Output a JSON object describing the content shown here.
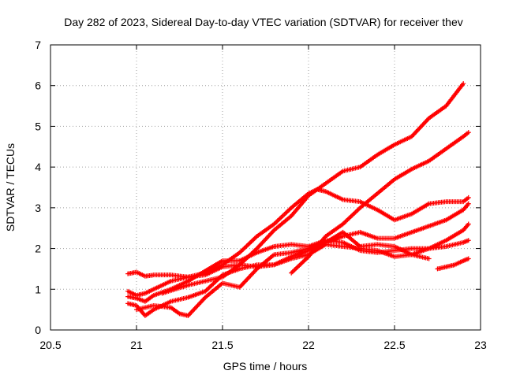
{
  "chart_data": {
    "type": "scatter",
    "title": "Day 282 of 2023, Sidereal Day-to-day VTEC variation (SDTVAR) for receiver thev",
    "xlabel": "GPS time / hours",
    "ylabel": "SDTVAR / TECUs",
    "xlim": [
      20.5,
      23
    ],
    "ylim": [
      0,
      7
    ],
    "x_ticks": [
      "20.5",
      "21",
      "21.5",
      "22",
      "22.5",
      "23"
    ],
    "y_ticks": [
      "0",
      "1",
      "2",
      "3",
      "4",
      "5",
      "6",
      "7"
    ],
    "x_tick_values": [
      20.5,
      21,
      21.5,
      22,
      22.5,
      23
    ],
    "y_tick_values": [
      0,
      1,
      2,
      3,
      4,
      5,
      6,
      7
    ],
    "grid": true,
    "marker": "plus",
    "marker_color": "#ff0000",
    "series": [
      {
        "points": [
          [
            20.95,
            1.38
          ],
          [
            21.0,
            1.42
          ],
          [
            21.05,
            1.32
          ],
          [
            21.1,
            1.35
          ],
          [
            21.2,
            1.35
          ],
          [
            21.3,
            1.3
          ],
          [
            21.4,
            1.35
          ],
          [
            21.5,
            1.55
          ],
          [
            21.6,
            1.6
          ],
          [
            21.7,
            1.55
          ],
          [
            21.8,
            1.6
          ],
          [
            21.9,
            1.8
          ],
          [
            22.0,
            1.95
          ],
          [
            22.1,
            2.15
          ],
          [
            22.2,
            2.3
          ],
          [
            22.3,
            2.4
          ],
          [
            22.4,
            2.25
          ],
          [
            22.5,
            2.25
          ],
          [
            22.6,
            2.4
          ],
          [
            22.7,
            2.55
          ],
          [
            22.8,
            2.7
          ],
          [
            22.9,
            2.95
          ],
          [
            22.93,
            3.1
          ]
        ]
      },
      {
        "points": [
          [
            20.95,
            0.95
          ],
          [
            21.0,
            0.85
          ],
          [
            21.05,
            0.9
          ],
          [
            21.1,
            1.0
          ],
          [
            21.2,
            1.2
          ],
          [
            21.3,
            1.3
          ],
          [
            21.4,
            1.4
          ],
          [
            21.5,
            1.6
          ],
          [
            21.6,
            1.9
          ],
          [
            21.7,
            2.3
          ],
          [
            21.8,
            2.6
          ],
          [
            21.9,
            3.0
          ],
          [
            22.0,
            3.35
          ],
          [
            22.05,
            3.45
          ],
          [
            22.1,
            3.4
          ],
          [
            22.2,
            3.2
          ],
          [
            22.3,
            3.15
          ],
          [
            22.4,
            2.95
          ],
          [
            22.5,
            2.7
          ],
          [
            22.6,
            2.85
          ],
          [
            22.7,
            3.1
          ],
          [
            22.8,
            3.15
          ],
          [
            22.9,
            3.15
          ],
          [
            22.93,
            3.25
          ]
        ]
      },
      {
        "points": [
          [
            20.95,
            0.82
          ],
          [
            21.0,
            0.78
          ],
          [
            21.05,
            0.7
          ],
          [
            21.1,
            0.85
          ],
          [
            21.2,
            1.0
          ],
          [
            21.3,
            1.2
          ],
          [
            21.4,
            1.45
          ],
          [
            21.5,
            1.7
          ],
          [
            21.6,
            1.7
          ],
          [
            21.7,
            1.9
          ],
          [
            21.8,
            2.05
          ],
          [
            21.9,
            2.1
          ],
          [
            22.0,
            2.05
          ],
          [
            22.1,
            2.2
          ],
          [
            22.2,
            2.15
          ],
          [
            22.3,
            1.95
          ],
          [
            22.4,
            1.9
          ],
          [
            22.5,
            1.95
          ],
          [
            22.6,
            2.0
          ],
          [
            22.7,
            2.0
          ],
          [
            22.8,
            2.05
          ],
          [
            22.9,
            2.15
          ],
          [
            22.93,
            2.2
          ]
        ]
      },
      {
        "points": [
          [
            20.95,
            0.65
          ],
          [
            21.0,
            0.6
          ],
          [
            21.05,
            0.35
          ],
          [
            21.1,
            0.5
          ],
          [
            21.2,
            0.7
          ],
          [
            21.3,
            0.8
          ],
          [
            21.4,
            0.95
          ],
          [
            21.5,
            1.35
          ],
          [
            21.6,
            1.5
          ],
          [
            21.7,
            1.6
          ],
          [
            21.8,
            1.6
          ],
          [
            21.9,
            1.75
          ],
          [
            22.0,
            1.85
          ],
          [
            22.1,
            2.1
          ],
          [
            22.2,
            2.05
          ],
          [
            22.3,
            2.0
          ],
          [
            22.4,
            1.95
          ],
          [
            22.5,
            1.8
          ],
          [
            22.6,
            1.85
          ],
          [
            22.7,
            2.0
          ],
          [
            22.8,
            2.2
          ],
          [
            22.9,
            2.45
          ],
          [
            22.93,
            2.6
          ]
        ]
      },
      {
        "points": [
          [
            21.0,
            0.5
          ],
          [
            21.1,
            0.6
          ],
          [
            21.2,
            0.55
          ],
          [
            21.25,
            0.4
          ],
          [
            21.3,
            0.35
          ],
          [
            21.4,
            0.8
          ],
          [
            21.5,
            1.15
          ],
          [
            21.6,
            1.05
          ],
          [
            21.7,
            1.5
          ],
          [
            21.8,
            1.85
          ],
          [
            21.9,
            1.9
          ],
          [
            22.0,
            2.0
          ],
          [
            22.1,
            2.15
          ],
          [
            22.2,
            2.4
          ],
          [
            22.3,
            2.05
          ],
          [
            22.4,
            2.1
          ],
          [
            22.5,
            2.05
          ],
          [
            22.6,
            1.85
          ],
          [
            22.7,
            1.75
          ]
        ]
      },
      {
        "points": [
          [
            21.15,
            0.9
          ],
          [
            21.3,
            1.1
          ],
          [
            21.4,
            1.2
          ],
          [
            21.5,
            1.3
          ],
          [
            21.6,
            1.6
          ],
          [
            21.7,
            2.0
          ],
          [
            21.8,
            2.45
          ],
          [
            21.9,
            2.8
          ],
          [
            22.0,
            3.3
          ],
          [
            22.1,
            3.6
          ],
          [
            22.2,
            3.9
          ],
          [
            22.3,
            4.0
          ],
          [
            22.4,
            4.3
          ],
          [
            22.5,
            4.55
          ],
          [
            22.6,
            4.75
          ],
          [
            22.7,
            5.2
          ],
          [
            22.8,
            5.5
          ],
          [
            22.9,
            6.05
          ]
        ]
      },
      {
        "points": [
          [
            21.9,
            1.4
          ],
          [
            22.0,
            1.8
          ],
          [
            22.1,
            2.3
          ],
          [
            22.2,
            2.6
          ],
          [
            22.3,
            3.0
          ],
          [
            22.4,
            3.35
          ],
          [
            22.5,
            3.7
          ],
          [
            22.6,
            3.95
          ],
          [
            22.7,
            4.15
          ],
          [
            22.8,
            4.45
          ],
          [
            22.9,
            4.75
          ],
          [
            22.93,
            4.85
          ]
        ]
      },
      {
        "points": [
          [
            22.75,
            1.5
          ],
          [
            22.8,
            1.55
          ],
          [
            22.85,
            1.6
          ],
          [
            22.9,
            1.7
          ],
          [
            22.93,
            1.75
          ]
        ]
      }
    ]
  }
}
